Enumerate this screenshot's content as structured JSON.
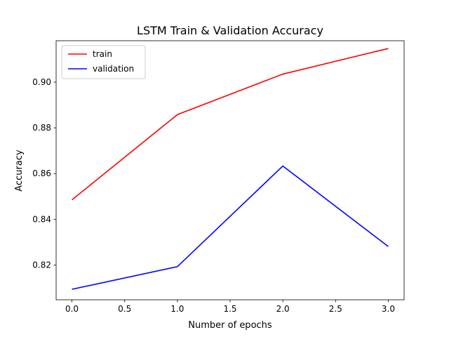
{
  "chart_data": {
    "type": "line",
    "title": "LSTM Train & Validation Accuracy",
    "xlabel": "Number of epochs",
    "ylabel": "Accuracy",
    "x": [
      0,
      1,
      2,
      3
    ],
    "xlim": [
      -0.15,
      3.15
    ],
    "ylim": [
      0.8048,
      0.9181
    ],
    "xticks": [
      0.0,
      0.5,
      1.0,
      1.5,
      2.0,
      2.5,
      3.0
    ],
    "xtick_labels": [
      "0.0",
      "0.5",
      "1.0",
      "1.5",
      "2.0",
      "2.5",
      "3.0"
    ],
    "yticks": [
      0.82,
      0.84,
      0.86,
      0.88,
      0.9
    ],
    "ytick_labels": [
      "0.82",
      "0.84",
      "0.86",
      "0.88",
      "0.90"
    ],
    "grid": false,
    "legend_position": "top-left",
    "series": [
      {
        "name": "train",
        "color": "#ff0000",
        "values": [
          0.8485,
          0.8858,
          0.9035,
          0.9147
        ]
      },
      {
        "name": "validation",
        "color": "#0000ff",
        "values": [
          0.8094,
          0.8193,
          0.8633,
          0.8281
        ]
      }
    ]
  }
}
